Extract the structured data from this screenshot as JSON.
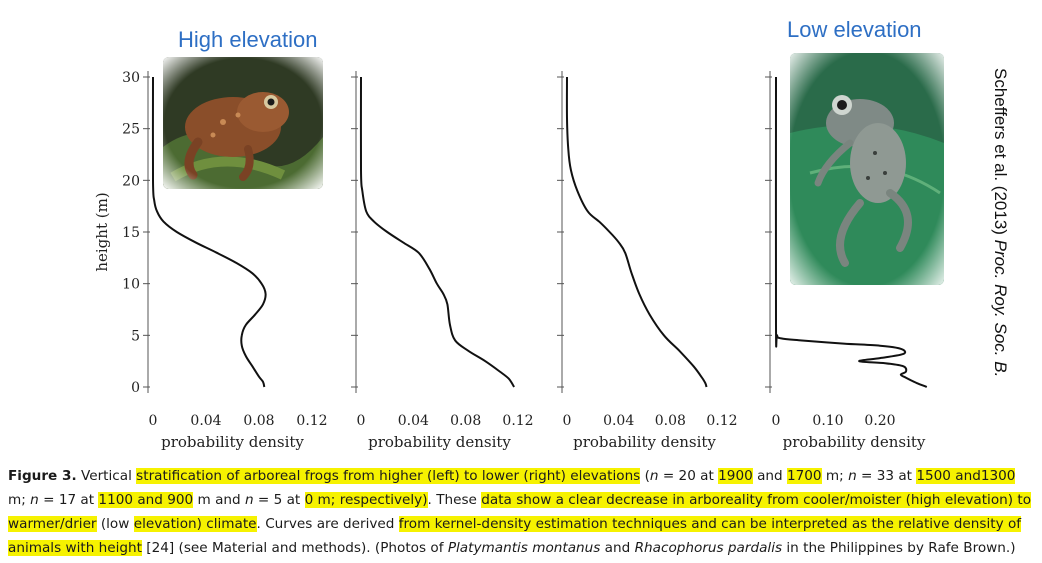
{
  "headers": {
    "high": "High elevation",
    "low": "Low elevation"
  },
  "citation": {
    "authors": "Scheffers et al. (2013) ",
    "journal": "Proc. Roy. Soc. B."
  },
  "photos": {
    "left": "frog-photo-platymantis",
    "right": "frog-photo-rhacophorus"
  },
  "chart_data": [
    {
      "type": "line",
      "title": "",
      "xlabel": "probability density",
      "ylabel": "height (m)",
      "xlim": [
        0,
        0.12
      ],
      "ylim": [
        0,
        30
      ],
      "xticks": [
        "0",
        "0.04",
        "0.08",
        "0.12"
      ],
      "yticks": [
        "0",
        "5",
        "10",
        "15",
        "20",
        "25",
        "30"
      ],
      "series": [
        {
          "x": [
            0.0,
            0.0,
            0.001,
            0.003,
            0.008,
            0.018,
            0.032,
            0.048,
            0.063,
            0.075,
            0.082,
            0.085,
            0.083,
            0.077,
            0.07,
            0.067,
            0.067,
            0.07,
            0.075,
            0.08,
            0.083,
            0.084
          ],
          "y": [
            30,
            20,
            18,
            17,
            16,
            15,
            14,
            13,
            12,
            11,
            10,
            9,
            8,
            7,
            6,
            5,
            4,
            3,
            2,
            1,
            0.5,
            0
          ]
        }
      ]
    },
    {
      "type": "line",
      "title": "",
      "xlabel": "probability density",
      "ylabel": "",
      "xlim": [
        0,
        0.12
      ],
      "ylim": [
        0,
        30
      ],
      "xticks": [
        "0",
        "0.04",
        "0.08",
        "0.12"
      ],
      "yticks": [],
      "series": [
        {
          "x": [
            0.0,
            0.0,
            0.001,
            0.004,
            0.01,
            0.02,
            0.032,
            0.044,
            0.052,
            0.058,
            0.063,
            0.066,
            0.068,
            0.072,
            0.082,
            0.095,
            0.106,
            0.113,
            0.117
          ],
          "y": [
            30,
            21,
            19,
            17,
            16,
            15,
            14,
            13,
            11.5,
            10,
            9,
            8,
            6,
            4.5,
            3.5,
            2.5,
            1.5,
            0.8,
            0
          ]
        }
      ]
    },
    {
      "type": "line",
      "title": "",
      "xlabel": "probability density",
      "ylabel": "",
      "xlim": [
        0,
        0.12
      ],
      "ylim": [
        0,
        30
      ],
      "xticks": [
        "0",
        "0.04",
        "0.08",
        "0.12"
      ],
      "yticks": [],
      "series": [
        {
          "x": [
            0.0,
            0.0,
            0.001,
            0.003,
            0.008,
            0.016,
            0.025,
            0.033,
            0.04,
            0.045,
            0.05,
            0.056,
            0.064,
            0.075,
            0.087,
            0.098,
            0.104,
            0.107,
            0.108
          ],
          "y": [
            30,
            26,
            23,
            21,
            19,
            17,
            16,
            15,
            14,
            13,
            11,
            9,
            7,
            5,
            3.5,
            2,
            1,
            0.4,
            0
          ]
        }
      ]
    },
    {
      "type": "line",
      "title": "",
      "xlabel": "probability density",
      "ylabel": "",
      "xlim": [
        0,
        0.3
      ],
      "ylim": [
        0,
        30
      ],
      "xticks": [
        "0",
        "0.10",
        "0.20"
      ],
      "yticks": [],
      "series": [
        {
          "x": [
            0.0,
            0.0,
            0.002,
            0.01,
            0.05,
            0.13,
            0.2,
            0.24,
            0.245,
            0.2,
            0.16,
            0.21,
            0.245,
            0.25,
            0.24,
            0.25,
            0.27,
            0.29
          ],
          "y": [
            30,
            6,
            5,
            4.7,
            4.5,
            4.2,
            4.0,
            3.7,
            3.2,
            2.8,
            2.5,
            2.3,
            2.0,
            1.5,
            1.2,
            0.9,
            0.4,
            0
          ]
        }
      ]
    }
  ],
  "caption": {
    "fig_label": "Figure 3.",
    "s1": " Vertical ",
    "h1": "stratification of arboreal frogs from higher (left) to lower (right) elevations",
    "s2": " (",
    "n1_var": "n",
    "n1_rest": " = 20 at ",
    "h2": "1900",
    "s3": " and ",
    "h3": "1700",
    "s4": " m; ",
    "n2_var": "n",
    "n2_rest": " = 33 at ",
    "h4": "1500 and1300",
    "s5": " m; ",
    "n3_var": "n",
    "n3_rest": " = 17 at ",
    "h5": "1100 and 900",
    "s6": " m and ",
    "n4_var": "n",
    "n4_rest": " = 5 at ",
    "h6": "0 m; respectively)",
    "s7": ". These ",
    "h7": "data show a clear decrease in arboreality from cooler/moister (high elevation) to warmer/drier",
    "s8": " (low ",
    "h8": "elevation) climate",
    "s9": ". Curves are derived ",
    "h9": "from kernel-density estimation techniques and can be interpreted as the relative density of animals with height",
    "s10": " [24] (see Material and methods). (Photos of ",
    "sp1": "Platymantis montanus",
    "s11": " and ",
    "sp2": "Rhacophorus pardalis",
    "s12": " in the Philippines by Rafe Brown.)"
  }
}
